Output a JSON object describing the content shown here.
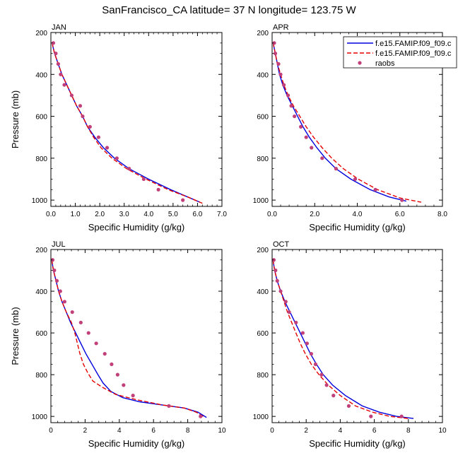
{
  "figure": {
    "title": "SanFrancisco_CA  latitude= 37 N longitude= 123.75 W"
  },
  "legend": {
    "entries": [
      {
        "label": "f.e15.FAMIP.f09_f09.c",
        "style": "solid-line",
        "color": "#0000dd"
      },
      {
        "label": "f.e15.FAMIP.f09_f09.c",
        "style": "dashed-line",
        "color": "#e60000"
      },
      {
        "label": "raobs",
        "style": "marker",
        "color": "#c2407a"
      }
    ]
  },
  "chart_data": [
    {
      "type": "line",
      "panel": "JAN",
      "title": "JAN",
      "xlabel": "Specific Humidity (g/kg)",
      "ylabel": "Pressure (mb)",
      "xlim": [
        0,
        7
      ],
      "ylim": [
        1030,
        200
      ],
      "xticks": [
        "0.0",
        "1.0",
        "2.0",
        "3.0",
        "4.0",
        "5.0",
        "6.0",
        "7.0"
      ],
      "xtick_values": [
        0,
        1,
        2,
        3,
        4,
        5,
        6,
        7
      ],
      "yticks": [
        "200",
        "400",
        "600",
        "800",
        "1000"
      ],
      "ytick_values": [
        200,
        400,
        600,
        800,
        1000
      ],
      "series": [
        {
          "name": "f.e15.FAMIP.f09_f09.c (solid)",
          "style": "solid",
          "color": "#0000dd",
          "points": [
            [
              0.05,
              250
            ],
            [
              0.15,
              300
            ],
            [
              0.3,
              350
            ],
            [
              0.45,
              400
            ],
            [
              0.65,
              450
            ],
            [
              0.85,
              500
            ],
            [
              1.05,
              550
            ],
            [
              1.3,
              600
            ],
            [
              1.5,
              650
            ],
            [
              1.8,
              700
            ],
            [
              2.15,
              750
            ],
            [
              2.6,
              800
            ],
            [
              3.2,
              850
            ],
            [
              4.0,
              900
            ],
            [
              4.9,
              950
            ],
            [
              5.6,
              985
            ],
            [
              6.1,
              1010
            ]
          ]
        },
        {
          "name": "f.e15.FAMIP.f09_f09.c (dashed)",
          "style": "dashed",
          "color": "#e60000",
          "points": [
            [
              0.05,
              250
            ],
            [
              0.15,
              300
            ],
            [
              0.3,
              350
            ],
            [
              0.45,
              400
            ],
            [
              0.65,
              450
            ],
            [
              0.85,
              500
            ],
            [
              1.05,
              550
            ],
            [
              1.3,
              600
            ],
            [
              1.5,
              650
            ],
            [
              1.75,
              700
            ],
            [
              2.05,
              750
            ],
            [
              2.5,
              800
            ],
            [
              3.1,
              850
            ],
            [
              3.9,
              900
            ],
            [
              4.8,
              950
            ],
            [
              5.6,
              985
            ],
            [
              6.2,
              1015
            ]
          ]
        },
        {
          "name": "raobs",
          "style": "markers",
          "color": "#c2407a",
          "points": [
            [
              0.1,
              250
            ],
            [
              0.2,
              300
            ],
            [
              0.3,
              350
            ],
            [
              0.4,
              400
            ],
            [
              0.55,
              450
            ],
            [
              0.85,
              500
            ],
            [
              1.2,
              550
            ],
            [
              1.3,
              600
            ],
            [
              1.6,
              650
            ],
            [
              1.95,
              700
            ],
            [
              2.3,
              750
            ],
            [
              2.7,
              800
            ],
            [
              3.2,
              850
            ],
            [
              3.8,
              900
            ],
            [
              4.4,
              950
            ],
            [
              5.4,
              1000
            ]
          ]
        }
      ]
    },
    {
      "type": "line",
      "panel": "APR",
      "title": "APR",
      "xlabel": "Specific Humidity (g/kg)",
      "ylabel": "",
      "xlim": [
        0,
        8
      ],
      "ylim": [
        1030,
        200
      ],
      "xticks": [
        "0.0",
        "2.0",
        "4.0",
        "6.0",
        "8.0"
      ],
      "xtick_values": [
        0,
        2,
        4,
        6,
        8
      ],
      "yticks": [
        "200",
        "400",
        "600",
        "800",
        "1000"
      ],
      "ytick_values": [
        200,
        400,
        600,
        800,
        1000
      ],
      "series": [
        {
          "name": "f.e15.FAMIP.f09_f09.c (solid)",
          "style": "solid",
          "color": "#0000dd",
          "points": [
            [
              0.05,
              250
            ],
            [
              0.15,
              300
            ],
            [
              0.25,
              350
            ],
            [
              0.35,
              400
            ],
            [
              0.5,
              450
            ],
            [
              0.7,
              500
            ],
            [
              0.95,
              550
            ],
            [
              1.2,
              600
            ],
            [
              1.45,
              650
            ],
            [
              1.75,
              700
            ],
            [
              2.1,
              750
            ],
            [
              2.5,
              800
            ],
            [
              3.0,
              850
            ],
            [
              3.7,
              900
            ],
            [
              4.6,
              950
            ],
            [
              5.5,
              985
            ],
            [
              6.3,
              1005
            ]
          ]
        },
        {
          "name": "f.e15.FAMIP.f09_f09.c (dashed)",
          "style": "dashed",
          "color": "#e60000",
          "points": [
            [
              0.05,
              250
            ],
            [
              0.15,
              300
            ],
            [
              0.25,
              350
            ],
            [
              0.4,
              400
            ],
            [
              0.55,
              450
            ],
            [
              0.75,
              500
            ],
            [
              1.0,
              550
            ],
            [
              1.3,
              600
            ],
            [
              1.6,
              650
            ],
            [
              1.95,
              700
            ],
            [
              2.35,
              750
            ],
            [
              2.8,
              800
            ],
            [
              3.35,
              850
            ],
            [
              4.05,
              900
            ],
            [
              4.95,
              950
            ],
            [
              6.0,
              990
            ],
            [
              7.0,
              1010
            ]
          ]
        },
        {
          "name": "raobs",
          "style": "markers",
          "color": "#c2407a",
          "points": [
            [
              0.1,
              250
            ],
            [
              0.15,
              300
            ],
            [
              0.3,
              350
            ],
            [
              0.4,
              400
            ],
            [
              0.55,
              450
            ],
            [
              0.75,
              500
            ],
            [
              0.9,
              550
            ],
            [
              1.05,
              600
            ],
            [
              1.35,
              650
            ],
            [
              1.6,
              700
            ],
            [
              1.85,
              750
            ],
            [
              2.35,
              800
            ],
            [
              3.0,
              850
            ],
            [
              3.9,
              900
            ],
            [
              4.85,
              950
            ],
            [
              6.1,
              1000
            ]
          ]
        }
      ]
    },
    {
      "type": "line",
      "panel": "JUL",
      "title": "JUL",
      "xlabel": "Specific Humidity (g/kg)",
      "ylabel": "Pressure (mb)",
      "xlim": [
        0,
        10
      ],
      "ylim": [
        1030,
        200
      ],
      "xticks": [
        "0",
        "2",
        "4",
        "6",
        "8",
        "10"
      ],
      "xtick_values": [
        0,
        2,
        4,
        6,
        8,
        10
      ],
      "yticks": [
        "200",
        "400",
        "600",
        "800",
        "1000"
      ],
      "ytick_values": [
        200,
        400,
        600,
        800,
        1000
      ],
      "series": [
        {
          "name": "f.e15.FAMIP.f09_f09.c (solid)",
          "style": "solid",
          "color": "#0000dd",
          "points": [
            [
              0.05,
              250
            ],
            [
              0.15,
              300
            ],
            [
              0.3,
              350
            ],
            [
              0.45,
              400
            ],
            [
              0.65,
              450
            ],
            [
              0.9,
              500
            ],
            [
              1.15,
              550
            ],
            [
              1.45,
              600
            ],
            [
              1.75,
              650
            ],
            [
              2.05,
              700
            ],
            [
              2.4,
              750
            ],
            [
              2.75,
              800
            ],
            [
              3.05,
              840
            ],
            [
              3.5,
              880
            ],
            [
              4.2,
              910
            ],
            [
              5.2,
              930
            ],
            [
              6.5,
              945
            ],
            [
              7.8,
              960
            ],
            [
              8.6,
              980
            ],
            [
              9.1,
              1005
            ]
          ]
        },
        {
          "name": "f.e15.FAMIP.f09_f09.c (dashed)",
          "style": "dashed",
          "color": "#e60000",
          "points": [
            [
              0.05,
              250
            ],
            [
              0.15,
              300
            ],
            [
              0.3,
              350
            ],
            [
              0.45,
              400
            ],
            [
              0.65,
              450
            ],
            [
              0.9,
              500
            ],
            [
              1.2,
              550
            ],
            [
              1.4,
              600
            ],
            [
              1.55,
              650
            ],
            [
              1.7,
              700
            ],
            [
              1.9,
              750
            ],
            [
              2.15,
              790
            ],
            [
              2.45,
              830
            ],
            [
              3.0,
              860
            ],
            [
              3.8,
              895
            ],
            [
              5.0,
              920
            ],
            [
              6.5,
              945
            ],
            [
              7.8,
              960
            ],
            [
              8.5,
              980
            ],
            [
              9.0,
              1005
            ]
          ]
        },
        {
          "name": "raobs",
          "style": "markers",
          "color": "#c2407a",
          "points": [
            [
              0.1,
              250
            ],
            [
              0.2,
              300
            ],
            [
              0.35,
              350
            ],
            [
              0.55,
              400
            ],
            [
              0.8,
              450
            ],
            [
              1.25,
              500
            ],
            [
              1.75,
              550
            ],
            [
              2.2,
              600
            ],
            [
              2.65,
              650
            ],
            [
              3.15,
              700
            ],
            [
              3.55,
              750
            ],
            [
              3.9,
              800
            ],
            [
              4.25,
              850
            ],
            [
              4.8,
              900
            ],
            [
              6.9,
              950
            ],
            [
              8.75,
              1000
            ]
          ]
        }
      ]
    },
    {
      "type": "line",
      "panel": "OCT",
      "title": "OCT",
      "xlabel": "Specific Humidity (g/kg)",
      "ylabel": "",
      "xlim": [
        0,
        10
      ],
      "ylim": [
        1030,
        200
      ],
      "xticks": [
        "0",
        "2",
        "4",
        "6",
        "8",
        "10"
      ],
      "xtick_values": [
        0,
        2,
        4,
        6,
        8,
        10
      ],
      "yticks": [
        "200",
        "400",
        "600",
        "800",
        "1000"
      ],
      "ytick_values": [
        200,
        400,
        600,
        800,
        1000
      ],
      "series": [
        {
          "name": "f.e15.FAMIP.f09_f09.c (solid)",
          "style": "solid",
          "color": "#0000dd",
          "points": [
            [
              0.05,
              250
            ],
            [
              0.15,
              300
            ],
            [
              0.3,
              350
            ],
            [
              0.5,
              400
            ],
            [
              0.75,
              450
            ],
            [
              1.05,
              500
            ],
            [
              1.35,
              550
            ],
            [
              1.65,
              600
            ],
            [
              1.95,
              650
            ],
            [
              2.25,
              700
            ],
            [
              2.6,
              750
            ],
            [
              3.0,
              800
            ],
            [
              3.55,
              850
            ],
            [
              4.3,
              900
            ],
            [
              5.3,
              950
            ],
            [
              6.3,
              980
            ],
            [
              7.3,
              1000
            ],
            [
              8.3,
              1010
            ]
          ]
        },
        {
          "name": "f.e15.FAMIP.f09_f09.c (dashed)",
          "style": "dashed",
          "color": "#e60000",
          "points": [
            [
              0.05,
              250
            ],
            [
              0.15,
              300
            ],
            [
              0.3,
              350
            ],
            [
              0.5,
              400
            ],
            [
              0.7,
              450
            ],
            [
              0.9,
              500
            ],
            [
              1.15,
              550
            ],
            [
              1.4,
              600
            ],
            [
              1.65,
              650
            ],
            [
              1.95,
              700
            ],
            [
              2.3,
              750
            ],
            [
              2.75,
              800
            ],
            [
              3.3,
              850
            ],
            [
              4.0,
              900
            ],
            [
              4.9,
              950
            ],
            [
              5.9,
              980
            ],
            [
              6.9,
              1000
            ],
            [
              8.0,
              1010
            ]
          ]
        },
        {
          "name": "raobs",
          "style": "markers",
          "color": "#c2407a",
          "points": [
            [
              0.1,
              250
            ],
            [
              0.2,
              300
            ],
            [
              0.3,
              350
            ],
            [
              0.5,
              400
            ],
            [
              0.8,
              450
            ],
            [
              1.0,
              500
            ],
            [
              1.4,
              550
            ],
            [
              1.8,
              600
            ],
            [
              2.05,
              650
            ],
            [
              2.3,
              700
            ],
            [
              2.55,
              750
            ],
            [
              2.9,
              800
            ],
            [
              3.2,
              850
            ],
            [
              3.6,
              900
            ],
            [
              4.5,
              950
            ],
            [
              5.8,
              1000
            ],
            [
              7.6,
              1000
            ]
          ]
        }
      ]
    }
  ]
}
